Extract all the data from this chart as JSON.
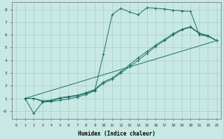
{
  "xlabel": "Humidex (Indice chaleur)",
  "bg_color": "#c8e8e4",
  "grid_color": "#a8cccc",
  "line_color": "#1a6e64",
  "xlim": [
    -0.5,
    23.5
  ],
  "ylim": [
    -0.6,
    8.6
  ],
  "xticks": [
    0,
    1,
    2,
    3,
    4,
    5,
    6,
    7,
    8,
    9,
    10,
    11,
    12,
    13,
    14,
    15,
    16,
    17,
    18,
    19,
    20,
    21,
    22,
    23
  ],
  "yticks": [
    0,
    1,
    2,
    3,
    4,
    5,
    6,
    7,
    8
  ],
  "ytick_labels": [
    "-0",
    "1",
    "2",
    "3",
    "4",
    "5",
    "6",
    "7",
    "8"
  ],
  "series": [
    {
      "x": [
        1,
        2,
        3,
        4,
        5,
        6,
        7,
        8,
        9,
        10,
        11,
        12,
        13,
        14,
        15,
        16,
        17,
        18,
        19,
        20,
        21,
        22,
        23
      ],
      "y": [
        1.0,
        -0.2,
        0.7,
        0.75,
        0.85,
        0.95,
        1.1,
        1.3,
        1.6,
        4.5,
        7.6,
        8.1,
        7.8,
        7.6,
        8.15,
        8.1,
        8.05,
        7.95,
        7.9,
        7.85,
        6.0,
        5.9,
        5.55
      ],
      "has_markers": true
    },
    {
      "x": [
        1,
        23
      ],
      "y": [
        1.0,
        5.55
      ],
      "has_markers": false
    },
    {
      "x": [
        1,
        2,
        3,
        4,
        5,
        6,
        7,
        8,
        9,
        10,
        11,
        12,
        13,
        14,
        15,
        16,
        17,
        18,
        19,
        20,
        21,
        22,
        23
      ],
      "y": [
        1.0,
        1.0,
        0.75,
        0.8,
        1.0,
        1.1,
        1.2,
        1.4,
        1.65,
        2.2,
        2.5,
        3.0,
        3.5,
        4.0,
        4.55,
        5.1,
        5.55,
        6.0,
        6.4,
        6.6,
        6.1,
        5.9,
        5.55
      ],
      "has_markers": true
    },
    {
      "x": [
        1,
        2,
        3,
        4,
        5,
        6,
        7,
        8,
        9,
        10,
        11,
        12,
        13,
        14,
        15,
        16,
        17,
        18,
        19,
        20,
        21,
        22,
        23
      ],
      "y": [
        1.0,
        1.0,
        0.8,
        0.85,
        1.05,
        1.15,
        1.25,
        1.45,
        1.7,
        2.3,
        2.6,
        3.1,
        3.65,
        4.2,
        4.7,
        5.2,
        5.65,
        6.1,
        6.45,
        6.65,
        6.15,
        5.95,
        5.55
      ],
      "has_markers": true
    }
  ]
}
